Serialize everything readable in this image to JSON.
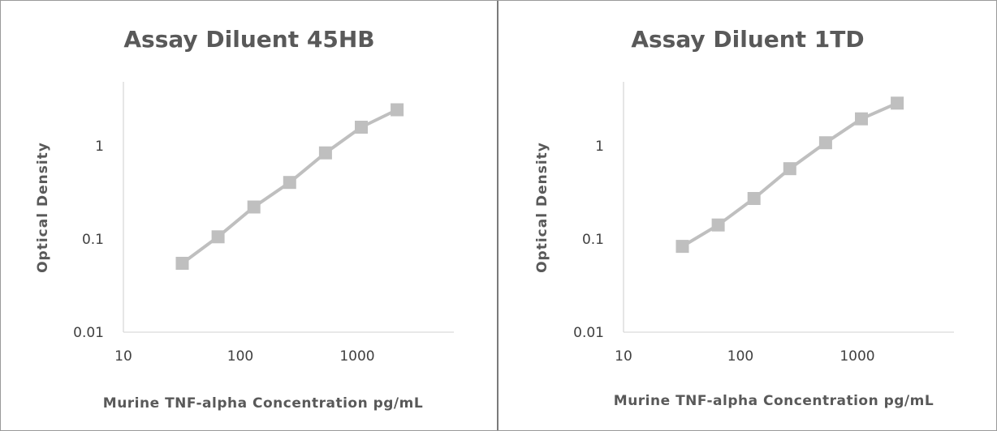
{
  "colors": {
    "series": "#bfbfbf",
    "axis": "#d9d9d9",
    "text": "#595959"
  },
  "chart_data": [
    {
      "type": "line",
      "title": "Assay Diluent 45HB",
      "xlabel": "Murine TNF-alpha  Concentration  pg/mL",
      "ylabel": "Optical  Density",
      "x_scale": "log",
      "y_scale": "log",
      "xlim": [
        10,
        6000
      ],
      "ylim": [
        0.01,
        4
      ],
      "x_ticks": [
        "10",
        "100",
        "1000"
      ],
      "y_ticks": [
        "0.01",
        "0.1",
        "1"
      ],
      "grid": false,
      "marker": "square",
      "series": [
        {
          "x": [
            31.25,
            62.5,
            125,
            250,
            500,
            1000,
            2000
          ],
          "y": [
            0.052,
            0.098,
            0.2,
            0.36,
            0.73,
            1.35,
            2.05
          ]
        }
      ]
    },
    {
      "type": "line",
      "title": "Assay Diluent 1TD",
      "xlabel": "Murine TNF-alpha  Concentration  pg/mL",
      "ylabel": "Optical  Density",
      "x_scale": "log",
      "y_scale": "log",
      "xlim": [
        10,
        6000
      ],
      "ylim": [
        0.01,
        4
      ],
      "x_ticks": [
        "10",
        "100",
        "1000"
      ],
      "y_ticks": [
        "0.01",
        "0.1",
        "1"
      ],
      "grid": false,
      "marker": "square",
      "series": [
        {
          "x": [
            31.25,
            62.5,
            125,
            250,
            500,
            1000,
            2000
          ],
          "y": [
            0.078,
            0.13,
            0.245,
            0.5,
            0.93,
            1.65,
            2.4
          ]
        }
      ]
    }
  ]
}
